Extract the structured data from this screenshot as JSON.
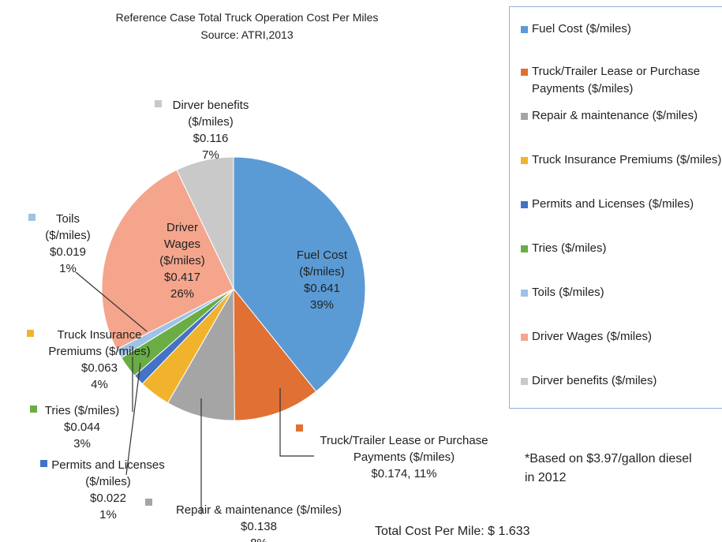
{
  "chart_data": {
    "type": "pie",
    "title": "Reference Case Total Truck Operation Cost Per Miles",
    "subtitle": "Source: ATRI,2013",
    "categories": [
      "Fuel Cost  ($/miles)",
      "Truck/Trailer Lease or Purchase Payments ($/miles)",
      "Repair & maintenance ($/miles)",
      "Truck Insurance Premiums ($/miles)",
      "Permits and Licenses ($/miles)",
      "Tries ($/miles)",
      "Toils ($/miles)",
      "Driver Wages ($/miles)",
      "Dirver benefits ($/miles)"
    ],
    "values": [
      0.641,
      0.174,
      0.138,
      0.063,
      0.022,
      0.044,
      0.019,
      0.417,
      0.116
    ],
    "value_labels": [
      "$0.641",
      "$0.174,",
      "$0.138",
      "$0.063",
      "$0.022",
      "$0.044",
      "$0.019",
      "$0.417",
      "$0.116"
    ],
    "percent_labels": [
      "39%",
      "11%",
      "8%",
      "4%",
      "1%",
      "3%",
      "1%",
      "26%",
      "7%"
    ],
    "colors": [
      "#5b9bd5",
      "#e07034",
      "#a5a5a5",
      "#f2b32c",
      "#4472c4",
      "#6aad45",
      "#9dc3e6",
      "#f4a58c",
      "#c9c9c9"
    ],
    "legend": "right",
    "annotations": [
      "*Based on $3.97/gallon diesel in 2012",
      "Total  Cost Per Mile: $ 1.633"
    ]
  }
}
